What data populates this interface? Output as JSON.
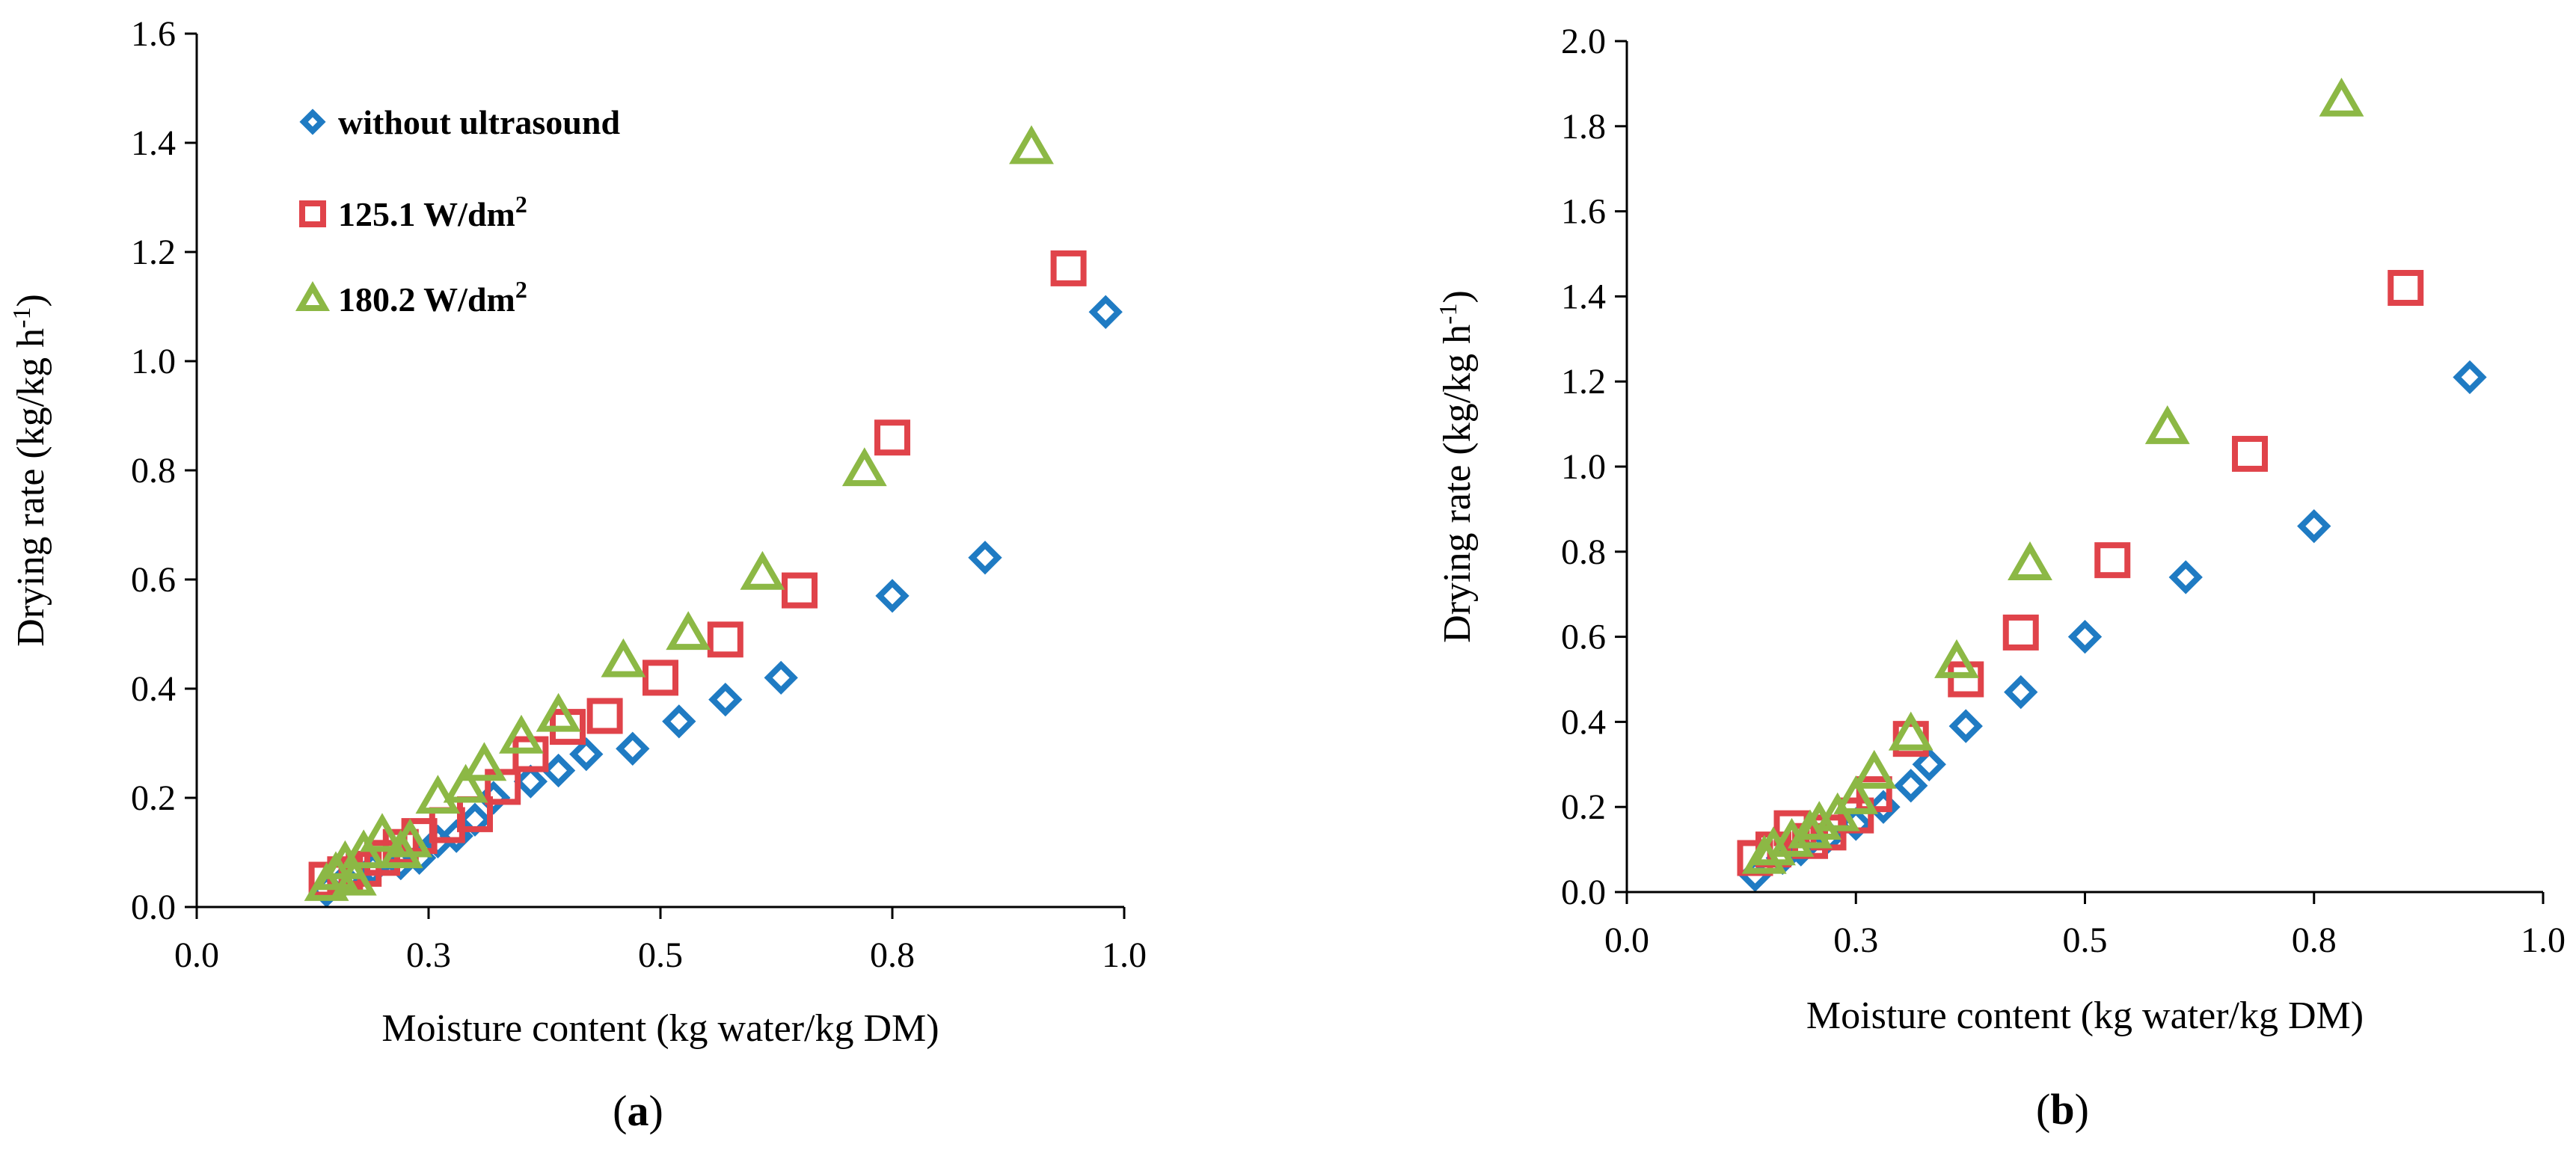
{
  "legend": {
    "items": [
      {
        "label": "without ultrasound",
        "marker": "diamond",
        "color": "#1f7bc3"
      },
      {
        "label": "125.1 W/dm",
        "sup": "2",
        "marker": "square",
        "color": "#e0434a"
      },
      {
        "label": "180.2 W/dm",
        "sup": "2",
        "marker": "triangle",
        "color": "#8cb845"
      }
    ]
  },
  "chart_data": [
    {
      "type": "scatter",
      "panel_label": {
        "open": "(",
        "letter": "a",
        "close": ")"
      },
      "title": "",
      "xlabel": "Moisture content  (kg water/kg DM)",
      "ylabel": {
        "text": "Drying rate (kg/kg h",
        "sup": "-1",
        "close": ")"
      },
      "xlim": [
        0.0,
        1.0
      ],
      "ylim": [
        0.0,
        1.6
      ],
      "xticks": [
        0.0,
        0.25,
        0.5,
        0.75,
        1.0
      ],
      "xtick_labels": [
        "0.0",
        "0.3",
        "0.5",
        "0.8",
        "1.0"
      ],
      "yticks": [
        0.0,
        0.2,
        0.4,
        0.6,
        0.8,
        1.0,
        1.2,
        1.4,
        1.6
      ],
      "ytick_labels": [
        "0.0",
        "0.2",
        "0.4",
        "0.6",
        "0.8",
        "1.0",
        "1.2",
        "1.4",
        "1.6"
      ],
      "grid": false,
      "legend_position": "top-left",
      "series": [
        {
          "name": "without ultrasound",
          "marker": "diamond",
          "color": "#1f7bc3",
          "points": [
            [
              0.14,
              0.03
            ],
            [
              0.16,
              0.05
            ],
            [
              0.19,
              0.07
            ],
            [
              0.22,
              0.08
            ],
            [
              0.24,
              0.09
            ],
            [
              0.26,
              0.12
            ],
            [
              0.28,
              0.13
            ],
            [
              0.3,
              0.16
            ],
            [
              0.32,
              0.2
            ],
            [
              0.36,
              0.23
            ],
            [
              0.39,
              0.25
            ],
            [
              0.42,
              0.28
            ],
            [
              0.47,
              0.29
            ],
            [
              0.52,
              0.34
            ],
            [
              0.57,
              0.38
            ],
            [
              0.63,
              0.42
            ],
            [
              0.75,
              0.57
            ],
            [
              0.85,
              0.64
            ],
            [
              0.98,
              1.09
            ]
          ]
        },
        {
          "name": "125.1 W/dm2",
          "marker": "square",
          "color": "#e0434a",
          "points": [
            [
              0.14,
              0.05
            ],
            [
              0.16,
              0.06
            ],
            [
              0.18,
              0.07
            ],
            [
              0.2,
              0.09
            ],
            [
              0.22,
              0.11
            ],
            [
              0.24,
              0.13
            ],
            [
              0.27,
              0.15
            ],
            [
              0.3,
              0.17
            ],
            [
              0.33,
              0.22
            ],
            [
              0.36,
              0.28
            ],
            [
              0.4,
              0.33
            ],
            [
              0.44,
              0.35
            ],
            [
              0.5,
              0.42
            ],
            [
              0.57,
              0.49
            ],
            [
              0.65,
              0.58
            ],
            [
              0.75,
              0.86
            ],
            [
              0.94,
              1.17
            ]
          ]
        },
        {
          "name": "180.2 W/dm2",
          "marker": "triangle",
          "color": "#8cb845",
          "points": [
            [
              0.14,
              0.04
            ],
            [
              0.15,
              0.06
            ],
            [
              0.16,
              0.08
            ],
            [
              0.17,
              0.05
            ],
            [
              0.18,
              0.1
            ],
            [
              0.2,
              0.13
            ],
            [
              0.22,
              0.1
            ],
            [
              0.23,
              0.12
            ],
            [
              0.26,
              0.2
            ],
            [
              0.29,
              0.22
            ],
            [
              0.31,
              0.26
            ],
            [
              0.35,
              0.31
            ],
            [
              0.39,
              0.35
            ],
            [
              0.46,
              0.45
            ],
            [
              0.53,
              0.5
            ],
            [
              0.61,
              0.61
            ],
            [
              0.72,
              0.8
            ],
            [
              0.9,
              1.39
            ]
          ]
        }
      ]
    },
    {
      "type": "scatter",
      "panel_label": {
        "open": "(",
        "letter": "b",
        "close": ")"
      },
      "title": "",
      "xlabel": "Moisture content  (kg water/kg DM)",
      "ylabel": {
        "text": "Drying rate  (kg/kg h",
        "sup": "-1",
        "close": ")"
      },
      "xlim": [
        0.0,
        1.0
      ],
      "ylim": [
        0.0,
        2.0
      ],
      "xticks": [
        0.0,
        0.25,
        0.5,
        0.75,
        1.0
      ],
      "xtick_labels": [
        "0.0",
        "0.3",
        "0.5",
        "0.8",
        "1.0"
      ],
      "yticks": [
        0.0,
        0.2,
        0.4,
        0.6,
        0.8,
        1.0,
        1.2,
        1.4,
        1.6,
        1.8,
        2.0
      ],
      "ytick_labels": [
        "0.0",
        "0.2",
        "0.4",
        "0.6",
        "0.8",
        "1.0",
        "1.2",
        "1.4",
        "1.6",
        "1.8",
        "2.0"
      ],
      "grid": false,
      "series": [
        {
          "name": "without ultrasound",
          "marker": "diamond",
          "color": "#1f7bc3",
          "points": [
            [
              0.14,
              0.04
            ],
            [
              0.17,
              0.08
            ],
            [
              0.19,
              0.1
            ],
            [
              0.22,
              0.13
            ],
            [
              0.25,
              0.16
            ],
            [
              0.28,
              0.2
            ],
            [
              0.31,
              0.25
            ],
            [
              0.33,
              0.3
            ],
            [
              0.37,
              0.39
            ],
            [
              0.43,
              0.47
            ],
            [
              0.5,
              0.6
            ],
            [
              0.61,
              0.74
            ],
            [
              0.75,
              0.86
            ],
            [
              0.92,
              1.21
            ]
          ]
        },
        {
          "name": "125.1 W/dm2",
          "marker": "square",
          "color": "#e0434a",
          "points": [
            [
              0.14,
              0.08
            ],
            [
              0.16,
              0.1
            ],
            [
              0.18,
              0.15
            ],
            [
              0.2,
              0.12
            ],
            [
              0.22,
              0.14
            ],
            [
              0.25,
              0.18
            ],
            [
              0.27,
              0.23
            ],
            [
              0.31,
              0.36
            ],
            [
              0.37,
              0.5
            ],
            [
              0.43,
              0.61
            ],
            [
              0.53,
              0.78
            ],
            [
              0.68,
              1.03
            ],
            [
              0.85,
              1.42
            ]
          ]
        },
        {
          "name": "180.2 W/dm2",
          "marker": "triangle",
          "color": "#8cb845",
          "points": [
            [
              0.15,
              0.08
            ],
            [
              0.16,
              0.1
            ],
            [
              0.18,
              0.12
            ],
            [
              0.2,
              0.14
            ],
            [
              0.21,
              0.16
            ],
            [
              0.23,
              0.18
            ],
            [
              0.25,
              0.22
            ],
            [
              0.27,
              0.28
            ],
            [
              0.31,
              0.37
            ],
            [
              0.36,
              0.54
            ],
            [
              0.44,
              0.77
            ],
            [
              0.59,
              1.09
            ],
            [
              0.78,
              1.86
            ]
          ]
        }
      ]
    }
  ]
}
